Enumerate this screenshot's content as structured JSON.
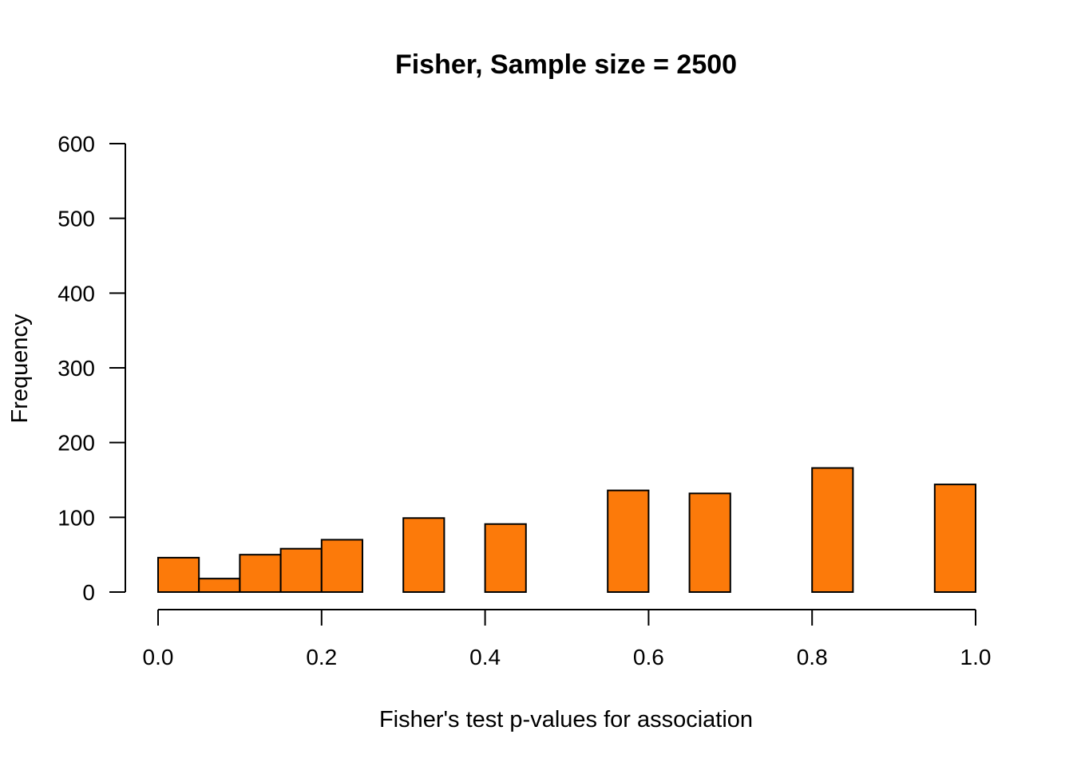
{
  "chart_data": {
    "type": "bar",
    "title": "Fisher, Sample size = 2500",
    "xlabel": "Fisher's test p-values for association",
    "ylabel": "Frequency",
    "xlim": [
      0,
      1
    ],
    "ylim": [
      0,
      600
    ],
    "x_ticks": [
      "0.0",
      "0.2",
      "0.4",
      "0.6",
      "0.8",
      "1.0"
    ],
    "y_ticks": [
      "0",
      "100",
      "200",
      "300",
      "400",
      "500",
      "600"
    ],
    "bin_edges": [
      0.0,
      0.05,
      0.1,
      0.15,
      0.2,
      0.25,
      0.3,
      0.35,
      0.4,
      0.45,
      0.5,
      0.55,
      0.6,
      0.65,
      0.7,
      0.75,
      0.8,
      0.85,
      0.9,
      0.95,
      1.0
    ],
    "values": [
      46,
      18,
      50,
      58,
      70,
      0,
      99,
      0,
      91,
      0,
      0,
      136,
      0,
      132,
      0,
      0,
      166,
      0,
      0,
      144
    ],
    "bar_color": "#FC7A0A",
    "grid": false
  }
}
